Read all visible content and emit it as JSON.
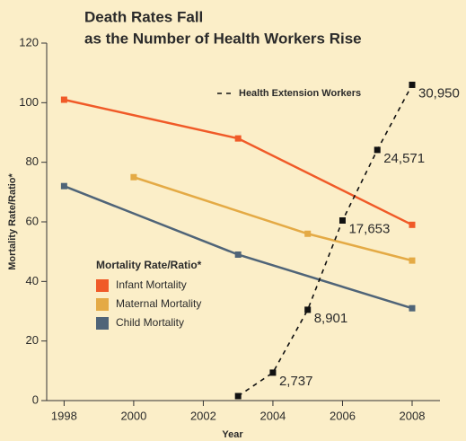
{
  "chart_data": {
    "type": "line",
    "title": [
      "Death Rates Fall",
      "as the Number of Health Workers Rise"
    ],
    "xlabel": "Year",
    "ylabel": "Mortality Rate/Ratio*",
    "legend_title": "Mortality Rate/Ratio*",
    "xlim": [
      1997.5,
      2008.8
    ],
    "xticks": [
      1998,
      2000,
      2002,
      2004,
      2006,
      2008
    ],
    "ylim": [
      0,
      120
    ],
    "yticks": [
      0,
      20,
      40,
      60,
      80,
      100,
      120
    ],
    "y2lim": [
      0,
      35040
    ],
    "series": [
      {
        "name": "Infant Mortality",
        "color": "#f05a28",
        "x": [
          1998,
          2003,
          2008
        ],
        "values": [
          101,
          88,
          59
        ]
      },
      {
        "name": "Maternal Mortality",
        "color": "#e4aa45",
        "x": [
          2000,
          2005,
          2008
        ],
        "values": [
          75,
          56,
          47
        ]
      },
      {
        "name": "Child Mortality",
        "color": "#4f6478",
        "x": [
          1998,
          2003,
          2008
        ],
        "values": [
          72,
          49,
          31
        ]
      },
      {
        "name": "Health Extension Workers",
        "color": "#111111",
        "axis": "y2",
        "style": "dashed",
        "x": [
          2003,
          2004,
          2005,
          2006,
          2007,
          2008
        ],
        "values": [
          440,
          2737,
          8901,
          17653,
          24571,
          30950
        ],
        "value_labels": [
          null,
          "2,737",
          "8,901",
          "17,653",
          "24,571",
          "30,950"
        ]
      }
    ]
  }
}
